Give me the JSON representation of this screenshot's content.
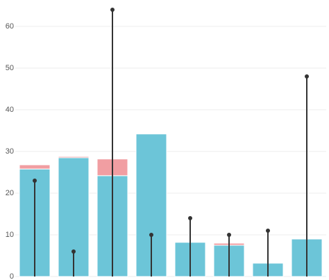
{
  "chart_data": {
    "type": "bar",
    "categories": [
      null,
      null,
      null,
      null,
      null,
      null,
      null,
      null
    ],
    "series": [
      {
        "style": "stacked",
        "color": "#6cc5d8",
        "values": [
          25.8,
          28.5,
          24.2,
          34.2,
          8.2,
          7.5,
          3.2,
          9
        ]
      },
      {
        "style": "stacked",
        "color": "#f19ea2",
        "values": [
          1.0,
          0.3,
          4.0,
          0,
          0,
          0.5,
          0,
          0
        ]
      },
      {
        "style": "lollipop",
        "color": "#333333",
        "values": [
          23,
          6,
          64,
          10,
          14,
          10,
          11,
          48
        ]
      }
    ],
    "ylim": [
      0,
      66
    ],
    "yticks": [
      0,
      10,
      20,
      30,
      40,
      50,
      60
    ],
    "grid": true
  }
}
